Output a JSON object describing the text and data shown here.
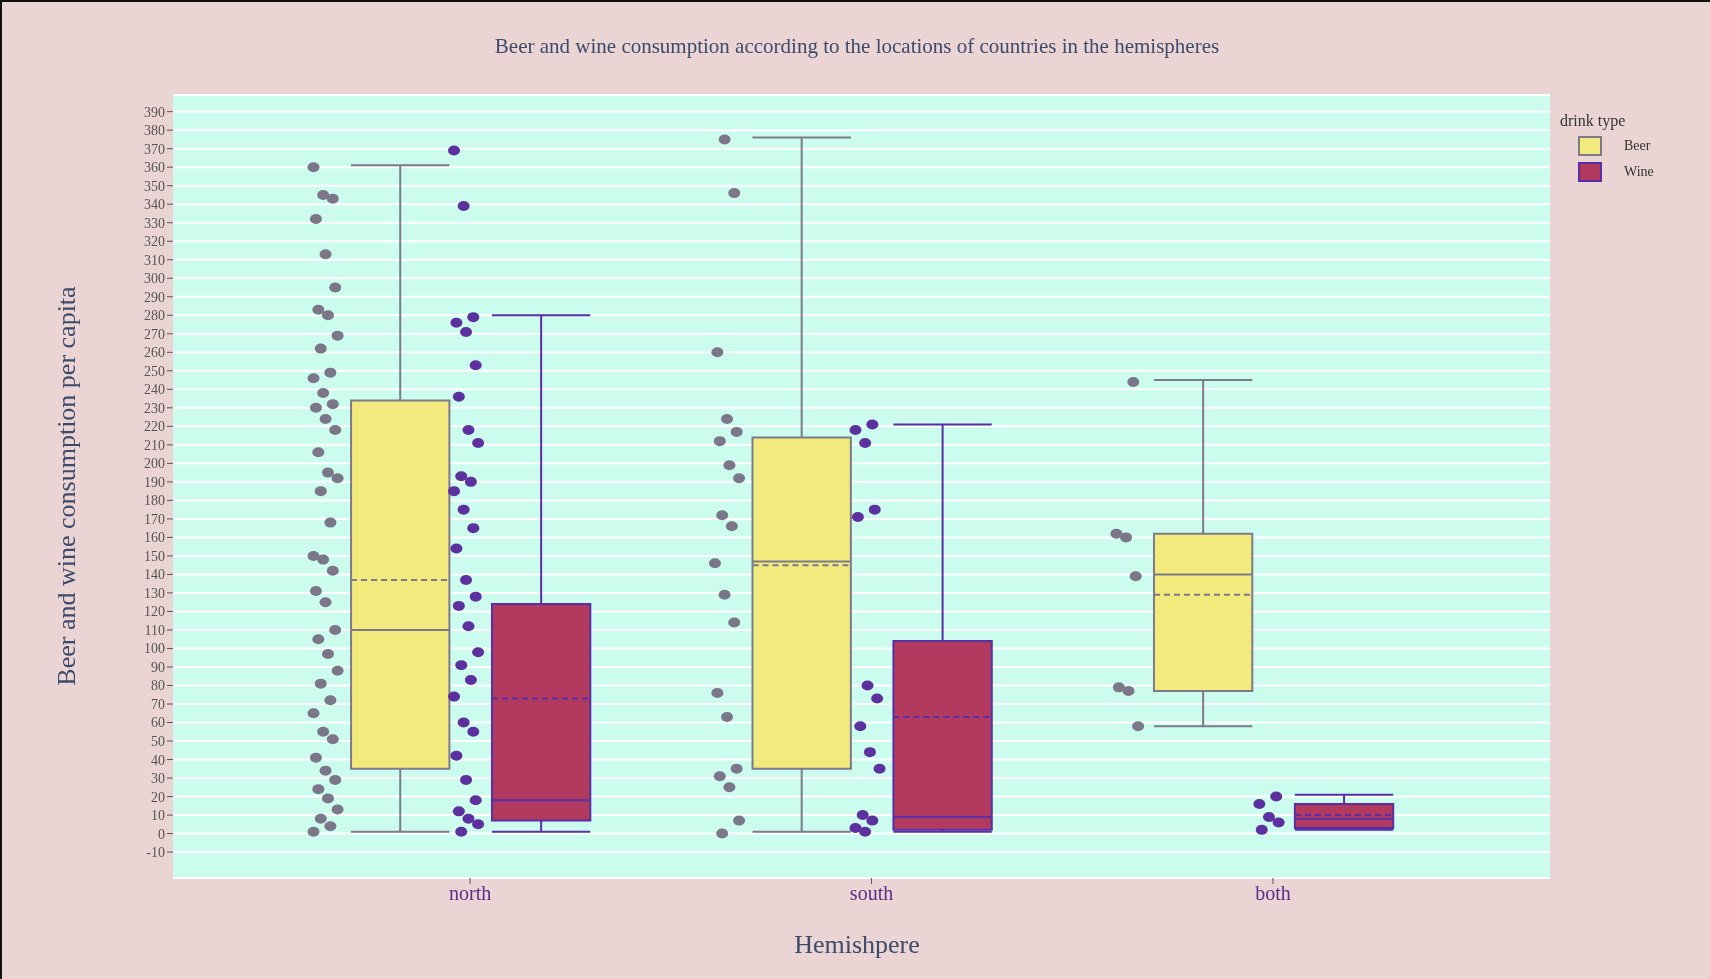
{
  "chart_data": {
    "type": "box",
    "title": "Beer and wine consumption according to the locations of countries in the hemispheres",
    "xlabel": "Hemishpere",
    "ylabel": "Beer and wine consumption per capita",
    "legend_title": "drink type",
    "legend": "top right",
    "grid": "y",
    "categories": [
      "north",
      "south",
      "both"
    ],
    "ylim": [
      -24,
      399
    ],
    "yticks": [
      -10,
      0,
      10,
      20,
      30,
      40,
      50,
      60,
      70,
      80,
      90,
      100,
      110,
      120,
      130,
      140,
      150,
      160,
      170,
      180,
      190,
      200,
      210,
      220,
      230,
      240,
      250,
      260,
      270,
      280,
      290,
      300,
      310,
      320,
      330,
      340,
      350,
      360,
      370,
      380,
      390
    ],
    "series": [
      {
        "name": "Beer",
        "color": "#f2ea7c",
        "boxes": [
          {
            "low": 1,
            "q1": 35,
            "median": 110,
            "q3": 234,
            "high": 361,
            "mean": 137
          },
          {
            "low": 1,
            "q1": 35,
            "median": 147,
            "q3": 214,
            "high": 376,
            "mean": 145
          },
          {
            "low": 58,
            "q1": 77,
            "median": 140,
            "q3": 162,
            "high": 245,
            "mean": 129
          }
        ]
      },
      {
        "name": "Wine",
        "color": "#b23a5e",
        "boxes": [
          {
            "low": 1,
            "q1": 7,
            "median": 18,
            "q3": 124,
            "high": 280,
            "mean": 73
          },
          {
            "low": 1,
            "q1": 2,
            "median": 9,
            "q3": 104,
            "high": 221,
            "mean": 63
          },
          {
            "low": 2,
            "q1": 3,
            "median": 8,
            "q3": 16,
            "high": 21,
            "mean": 10
          }
        ]
      },
      {
        "type": "scatter",
        "color": "#7b7789",
        "x": [
          "north",
          "north",
          "north",
          "north",
          "north",
          "north",
          "north",
          "north",
          "north",
          "north",
          "north",
          "north",
          "north",
          "north",
          "north",
          "north",
          "north",
          "north",
          "north",
          "north",
          "north",
          "north",
          "north",
          "north",
          "north",
          "north",
          "north",
          "north",
          "north",
          "north",
          "north",
          "north",
          "north",
          "north",
          "north",
          "north",
          "north",
          "north",
          "north",
          "north",
          "north",
          "north",
          "north",
          "north",
          "north",
          "south",
          "south",
          "south",
          "south",
          "south",
          "south",
          "south",
          "south",
          "south",
          "south",
          "south",
          "south",
          "south",
          "south",
          "south",
          "south",
          "south",
          "south",
          "south",
          "south",
          "both",
          "both",
          "both",
          "both",
          "both",
          "both",
          "both"
        ],
        "values": [
          360,
          345,
          343,
          332,
          313,
          295,
          283,
          280,
          269,
          262,
          249,
          246,
          238,
          232,
          230,
          224,
          218,
          206,
          195,
          192,
          185,
          168,
          150,
          148,
          142,
          131,
          125,
          110,
          105,
          97,
          88,
          81,
          72,
          65,
          55,
          51,
          41,
          34,
          29,
          24,
          19,
          13,
          8,
          4,
          1,
          375,
          346,
          260,
          224,
          217,
          212,
          199,
          192,
          172,
          166,
          146,
          129,
          114,
          76,
          63,
          35,
          31,
          25,
          7,
          0,
          244,
          162,
          160,
          139,
          79,
          77,
          58
        ]
      },
      {
        "type": "scatter",
        "color": "#5d30a0",
        "x": [
          "north",
          "north",
          "north",
          "north",
          "north",
          "north",
          "north",
          "north",
          "north",
          "north",
          "north",
          "north",
          "north",
          "north",
          "north",
          "north",
          "north",
          "north",
          "north",
          "north",
          "north",
          "north",
          "north",
          "north",
          "north",
          "north",
          "north",
          "north",
          "north",
          "north",
          "north",
          "north",
          "south",
          "south",
          "south",
          "south",
          "south",
          "south",
          "south",
          "south",
          "south",
          "south",
          "south",
          "south",
          "south",
          "south",
          "both",
          "both",
          "both",
          "both",
          "both"
        ],
        "values": [
          369,
          339,
          279,
          276,
          271,
          253,
          236,
          218,
          211,
          193,
          190,
          185,
          175,
          165,
          154,
          137,
          128,
          123,
          112,
          98,
          91,
          83,
          74,
          60,
          55,
          42,
          29,
          18,
          12,
          8,
          5,
          1,
          221,
          218,
          211,
          175,
          171,
          80,
          73,
          58,
          44,
          35,
          10,
          7,
          3,
          1,
          20,
          16,
          9,
          6,
          2
        ]
      }
    ]
  }
}
